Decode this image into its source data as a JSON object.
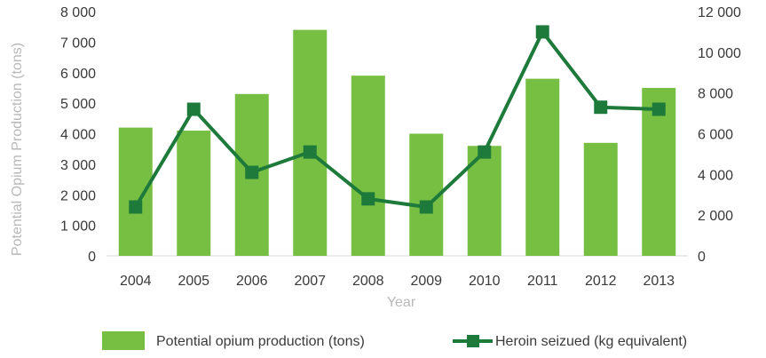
{
  "chart_data": {
    "type": "bar+line",
    "title": "",
    "xlabel": "Year",
    "ylabel_left": "Potential Opium Production (tons)",
    "ylabel_right": "",
    "categories": [
      "2004",
      "2005",
      "2006",
      "2007",
      "2008",
      "2009",
      "2010",
      "2011",
      "2012",
      "2013"
    ],
    "ylim_left": [
      0,
      8000
    ],
    "ylim_right": [
      0,
      12000
    ],
    "yticks_left": [
      "0",
      "1 000",
      "2 000",
      "3 000",
      "4 000",
      "5 000",
      "6 000",
      "7 000",
      "8 000"
    ],
    "yticks_right": [
      "0",
      "2 000",
      "4 000",
      "6 000",
      "8 000",
      "10 000",
      "12 000"
    ],
    "grid": false,
    "legend_position": "bottom",
    "series": [
      {
        "name": "Potential opium production (tons)",
        "type": "bar",
        "axis": "left",
        "color": "#76bf43",
        "values": [
          4200,
          4100,
          5300,
          7400,
          5900,
          4000,
          3600,
          5800,
          3700,
          5500
        ]
      },
      {
        "name": "Heroin seizued (kg equivalent)",
        "type": "line",
        "axis": "right",
        "color": "#1d7a3a",
        "values": [
          2400,
          7200,
          4100,
          5100,
          2800,
          2400,
          5100,
          11000,
          7300,
          7200
        ]
      }
    ]
  }
}
